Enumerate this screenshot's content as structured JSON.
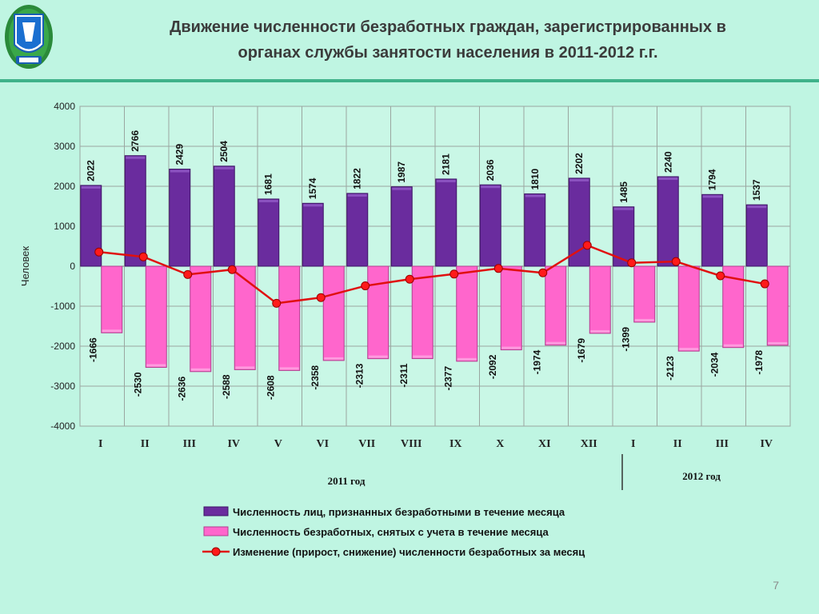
{
  "header": {
    "title_line1": "Движение численности безработных граждан, зарегистрированных в",
    "title_line2": "органах службы занятости населения в 2011-2012 г.г.",
    "emblem_icon": "coat-of-arms-emblem-icon"
  },
  "colors": {
    "background": "#bff5e2",
    "plot_area": "#c9f7e6",
    "registered": "#6a2c9e",
    "removed": "#ff66cc",
    "change_line": "#e01010",
    "change_marker": "#ff1a1a"
  },
  "chart_data": {
    "type": "bar",
    "ylabel": "Человек",
    "ylim": [
      -4000,
      4000
    ],
    "yticks": [
      4000,
      3000,
      2000,
      1000,
      0,
      -1000,
      -2000,
      -3000,
      -4000
    ],
    "grid": true,
    "categories": [
      "I",
      "II",
      "III",
      "IV",
      "V",
      "VI",
      "VII",
      "VIII",
      "IX",
      "X",
      "XI",
      "XII",
      "I",
      "II",
      "III",
      "IV"
    ],
    "year_groups": [
      {
        "label": "2011 год",
        "months": 12
      },
      {
        "label": "2012 год",
        "months": 4
      }
    ],
    "series": [
      {
        "name": "Численность лиц, признанных безработными в течение месяца",
        "kind": "bar",
        "values": [
          2022,
          2766,
          2429,
          2504,
          1681,
          1574,
          1822,
          1987,
          2181,
          2036,
          1810,
          2202,
          1485,
          2240,
          1794,
          1537
        ]
      },
      {
        "name": "Численность безработных, снятых с учета в течение месяца",
        "kind": "bar",
        "values": [
          -1666,
          -2530,
          -2636,
          -2588,
          -2608,
          -2358,
          -2313,
          -2311,
          -2377,
          -2092,
          -1974,
          -1679,
          -1399,
          -2123,
          -2034,
          -1978
        ]
      },
      {
        "name": "Изменение (прирост, снижение) численности безработных за месяц",
        "kind": "line",
        "values": [
          356,
          236,
          -207,
          -84,
          -927,
          -784,
          -491,
          -324,
          -196,
          -56,
          -164,
          523,
          86,
          117,
          -240,
          -441
        ]
      }
    ],
    "legend_position": "bottom"
  },
  "footer": {
    "slide_number": "7"
  }
}
